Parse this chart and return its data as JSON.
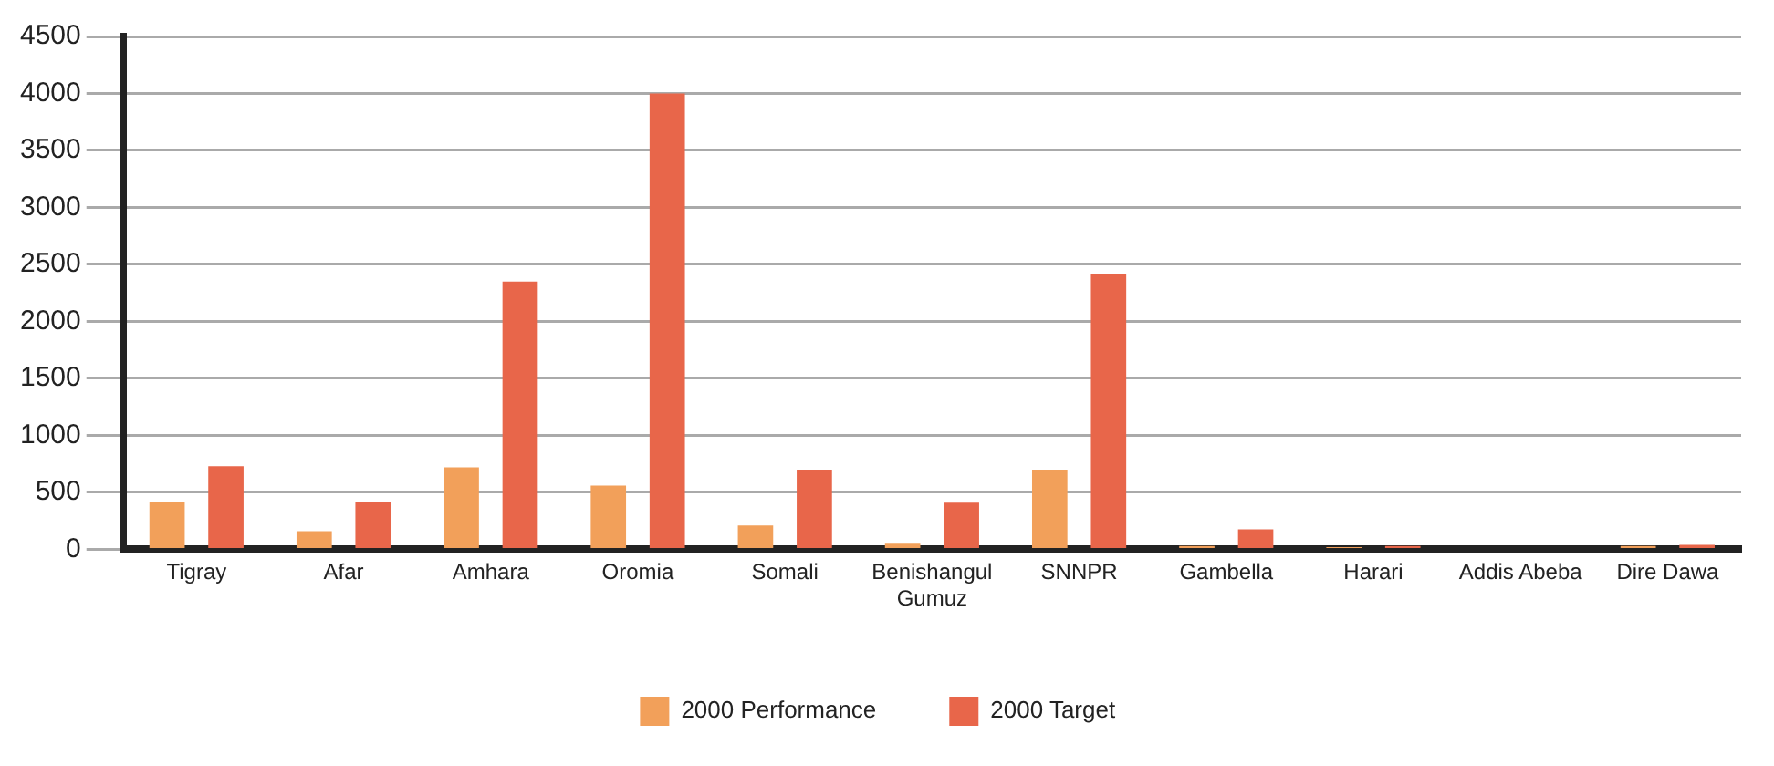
{
  "chart_data": {
    "type": "bar",
    "categories": [
      "Tigray",
      "Afar",
      "Amhara",
      "Oromia",
      "Somali",
      "Benishangul\nGumuz",
      "SNNPR",
      "Gambella",
      "Harari",
      "Addis Abeba",
      "Dire Dawa"
    ],
    "series": [
      {
        "name": "2000 Performance",
        "color": "#f2a05a",
        "values": [
          420,
          160,
          720,
          560,
          210,
          50,
          700,
          30,
          20,
          0,
          30
        ]
      },
      {
        "name": "2000 Target",
        "color": "#e8664a",
        "values": [
          730,
          420,
          2350,
          4000,
          700,
          410,
          2420,
          175,
          30,
          0,
          40
        ]
      }
    ],
    "ylim": [
      0,
      4500
    ],
    "yticks": [
      0,
      500,
      1000,
      1500,
      2000,
      2500,
      3000,
      3500,
      4000,
      4500
    ],
    "grid": "y",
    "legend": "bottom"
  }
}
